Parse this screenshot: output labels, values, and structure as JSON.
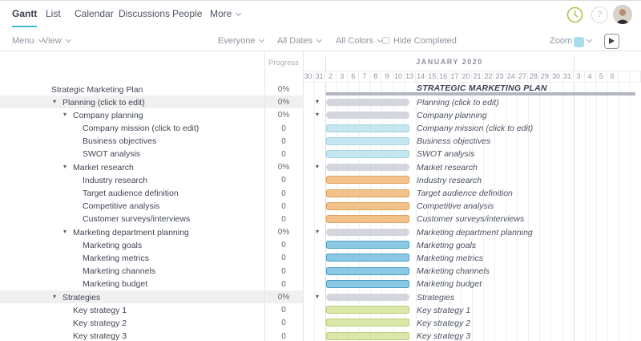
{
  "nav": {
    "tabs": [
      {
        "label": "Gantt",
        "active": true
      },
      {
        "label": "List"
      },
      {
        "label": "Calendar"
      },
      {
        "label": "Discussions"
      },
      {
        "label": "People"
      }
    ],
    "more_label": "More"
  },
  "header_icons": [
    "history-clock-icon",
    "help-icon",
    "user-avatar"
  ],
  "toolbar": {
    "menu_label": "Menu",
    "view_label": "View",
    "everyone_label": "Everyone",
    "all_dates_label": "All Dates",
    "all_colors_label": "All Colors",
    "hide_completed_label": "Hide Completed",
    "zoom_label": "Zoom"
  },
  "grid": {
    "progress_header": "Progress"
  },
  "timeline": {
    "month_label": "JANUARY 2020",
    "days": [
      "30",
      "31",
      "2",
      "3",
      "6",
      "7",
      "8",
      "9",
      "10",
      "13",
      "14",
      "15",
      "16",
      "17",
      "20",
      "21",
      "22",
      "23",
      "24",
      "27",
      "28",
      "29",
      "30",
      "31",
      "3",
      "4",
      "5",
      "6"
    ],
    "month_break_after_indexes": [
      1,
      23
    ]
  },
  "project_chart_label": "STRATEGIC MARKETING PLAN",
  "tasks": [
    {
      "name": "Strategic Marketing Plan",
      "progress": "0%",
      "level": 0,
      "kind": "project"
    },
    {
      "name": "Planning (click to edit)",
      "progress": "0%",
      "level": 1,
      "kind": "group",
      "highlighted": true
    },
    {
      "name": "Company planning",
      "progress": "0%",
      "level": 2,
      "kind": "group"
    },
    {
      "name": "Company mission (click to edit)",
      "progress": "0",
      "level": 3,
      "kind": "task",
      "color": "cyan"
    },
    {
      "name": "Business objectives",
      "progress": "0",
      "level": 3,
      "kind": "task",
      "color": "cyan"
    },
    {
      "name": "SWOT analysis",
      "progress": "0",
      "level": 3,
      "kind": "task",
      "color": "cyan"
    },
    {
      "name": "Market research",
      "progress": "0%",
      "level": 2,
      "kind": "group"
    },
    {
      "name": "Industry research",
      "progress": "0",
      "level": 3,
      "kind": "task",
      "color": "orange"
    },
    {
      "name": "Target audience definition",
      "progress": "0",
      "level": 3,
      "kind": "task",
      "color": "orange"
    },
    {
      "name": "Competitive analysis",
      "progress": "0",
      "level": 3,
      "kind": "task",
      "color": "orange"
    },
    {
      "name": "Customer surveys/interviews",
      "progress": "0",
      "level": 3,
      "kind": "task",
      "color": "orange"
    },
    {
      "name": "Marketing department planning",
      "progress": "0%",
      "level": 2,
      "kind": "group"
    },
    {
      "name": "Marketing goals",
      "progress": "0",
      "level": 3,
      "kind": "task",
      "color": "blue"
    },
    {
      "name": "Marketing metrics",
      "progress": "0",
      "level": 3,
      "kind": "task",
      "color": "blue"
    },
    {
      "name": "Marketing channels",
      "progress": "0",
      "level": 3,
      "kind": "task",
      "color": "blue"
    },
    {
      "name": "Marketing budget",
      "progress": "0",
      "level": 3,
      "kind": "task",
      "color": "blue"
    },
    {
      "name": "Strategies",
      "progress": "0%",
      "level": 1,
      "kind": "group",
      "highlighted": true
    },
    {
      "name": "Key strategy 1",
      "progress": "0",
      "level": 2,
      "kind": "task",
      "color": "green"
    },
    {
      "name": "Key strategy 2",
      "progress": "0",
      "level": 2,
      "kind": "task",
      "color": "green"
    },
    {
      "name": "Key strategy 3",
      "progress": "0",
      "level": 2,
      "kind": "task",
      "color": "green"
    }
  ],
  "colors": {
    "accent_underline": "#41b7d8",
    "zoom_swatch": "#a9dcec",
    "clock_green": "#a9c64c",
    "row_highlight": "#f0f0f1",
    "project_bar": "#b2b6bf",
    "bars": {
      "gray": {
        "fill": "#d3d6dd",
        "border": "#d3d6dd"
      },
      "cyan": {
        "fill": "#c5e6ee",
        "border": "#a6d3e0"
      },
      "orange": {
        "fill": "#f3c28b",
        "border": "#dda264"
      },
      "blue": {
        "fill": "#8bc8e3",
        "border": "#4e9ec6"
      },
      "green": {
        "fill": "#d9e7a9",
        "border": "#bcce7c"
      }
    }
  }
}
